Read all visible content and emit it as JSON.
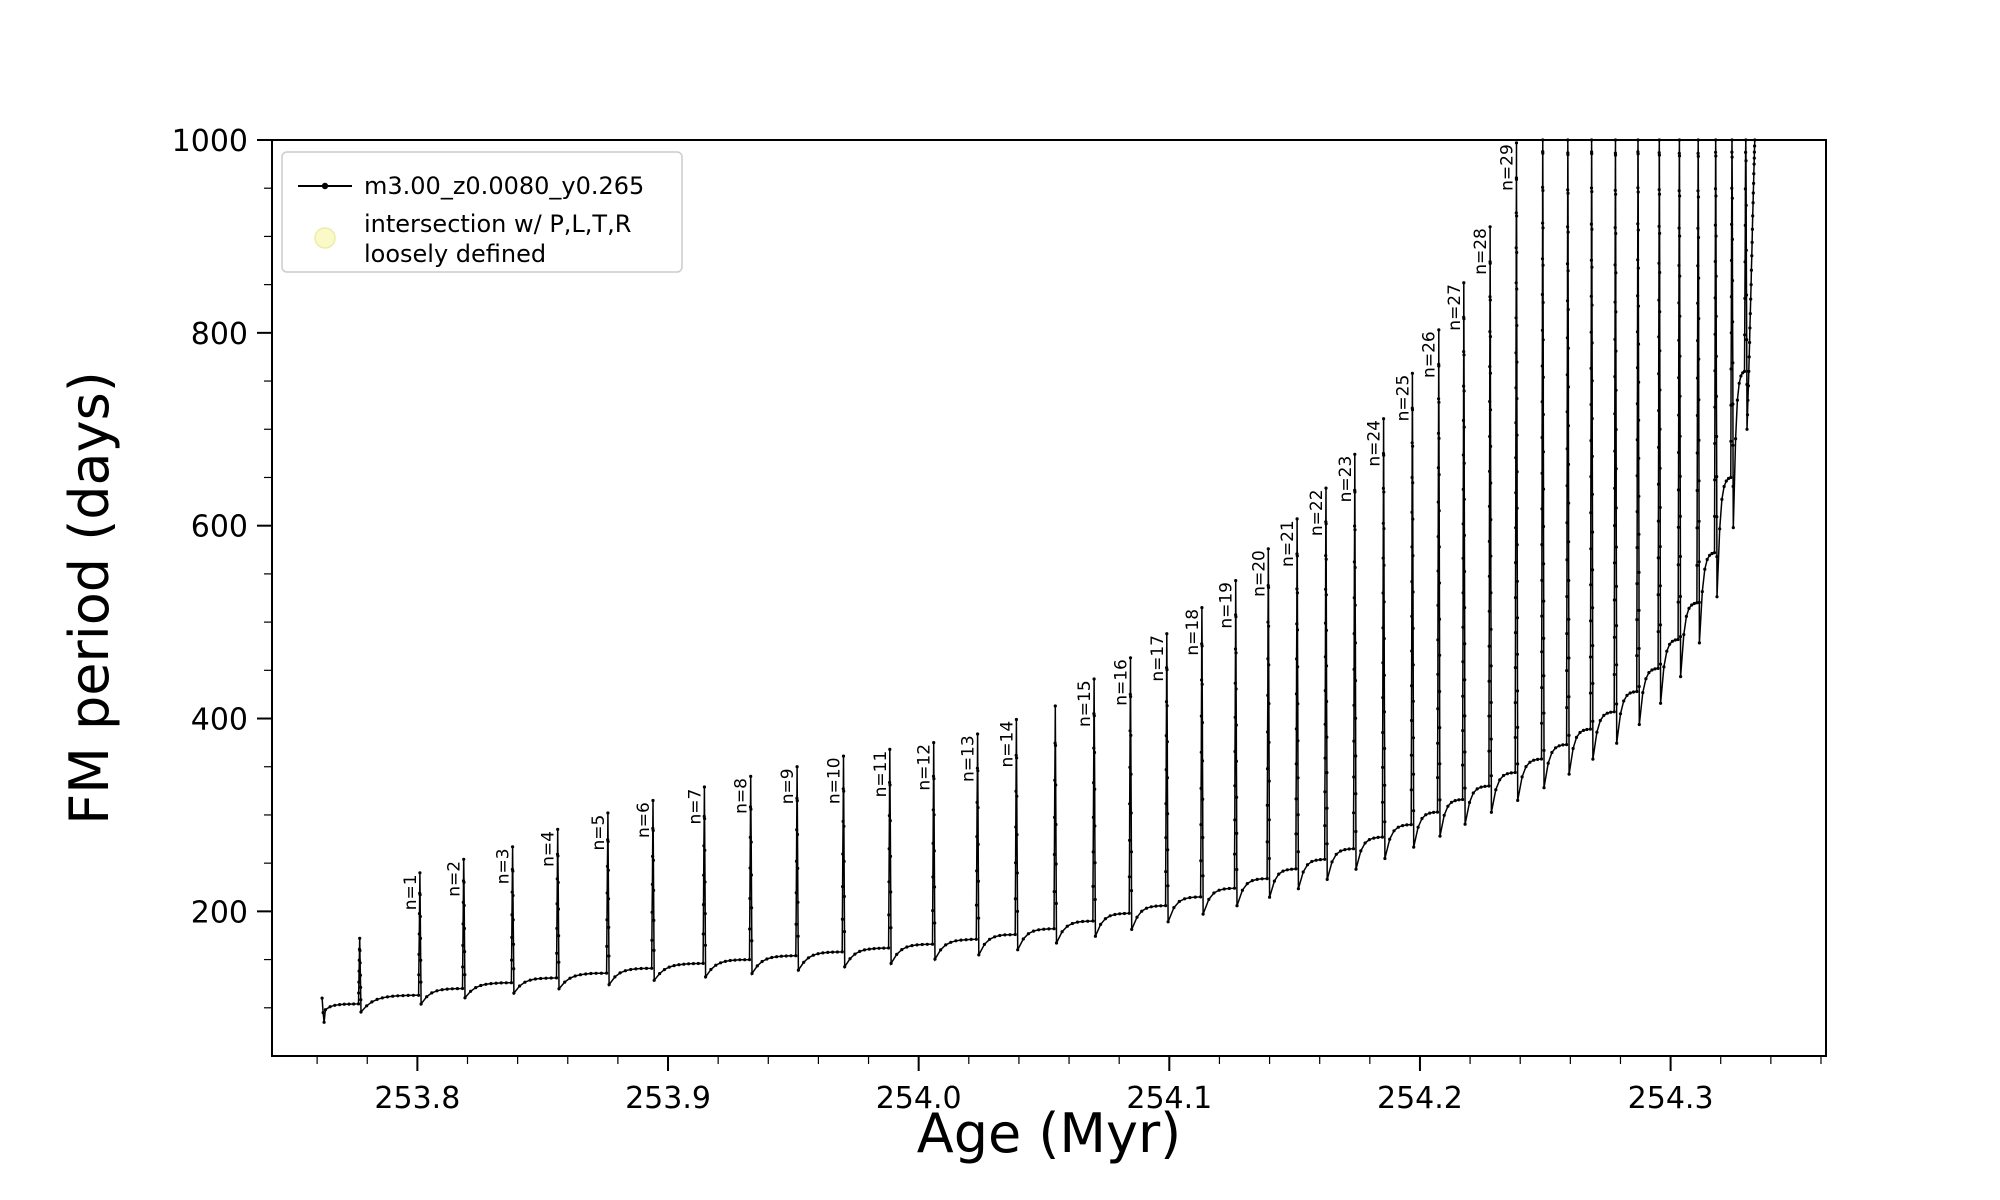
{
  "figure": {
    "background": "#ffffff"
  },
  "legend": {
    "entries": [
      {
        "label": "m3.00_z0.0080_y0.265",
        "marker": "line-dot",
        "color": "#000000"
      },
      {
        "label": "intersection w/ P,L,T,R loosely defined",
        "lines": [
          "intersection w/ P,L,T,R",
          "loosely defined"
        ],
        "marker": "circle",
        "color": "#fafac8"
      }
    ]
  },
  "chart_data": {
    "type": "line",
    "title": "",
    "xlabel": "Age (Myr)",
    "ylabel": "FM period (days)",
    "series_label": "m3.00_z0.0080_y0.265",
    "line_color": "#000000",
    "grid": false,
    "legend_position": "upper-left",
    "xlim": [
      253.742,
      254.362
    ],
    "ylim": [
      50,
      1000
    ],
    "xticks": [
      {
        "value": 253.8,
        "label": "253.8"
      },
      {
        "value": 253.9,
        "label": "253.9"
      },
      {
        "value": 254.0,
        "label": "254.0"
      },
      {
        "value": 254.1,
        "label": "254.1"
      },
      {
        "value": 254.2,
        "label": "254.2"
      },
      {
        "value": 254.3,
        "label": "254.3"
      }
    ],
    "yticks": [
      {
        "value": 200,
        "label": "200"
      },
      {
        "value": 400,
        "label": "400"
      },
      {
        "value": 600,
        "label": "600"
      },
      {
        "value": 800,
        "label": "800"
      },
      {
        "value": 1000,
        "label": "1000"
      }
    ],
    "x_minor_start": 253.76,
    "x_minor_step": 0.02,
    "y_minor_start": 100,
    "y_minor_step": 50,
    "start_points": [
      [
        253.762,
        110
      ],
      [
        253.7624,
        95
      ],
      [
        253.7628,
        85
      ],
      [
        253.7633,
        98
      ]
    ],
    "spikes": [
      {
        "n": "",
        "age": 253.777,
        "peak": 172,
        "plateau": 104
      },
      {
        "n": "n=1",
        "age": 253.801,
        "peak": 240,
        "plateau": 113
      },
      {
        "n": "n=2",
        "age": 253.8185,
        "peak": 254,
        "plateau": 120
      },
      {
        "n": "n=3",
        "age": 253.838,
        "peak": 267,
        "plateau": 126
      },
      {
        "n": "n=4",
        "age": 253.856,
        "peak": 285,
        "plateau": 131
      },
      {
        "n": "n=5",
        "age": 253.876,
        "peak": 302,
        "plateau": 136
      },
      {
        "n": "n=6",
        "age": 253.894,
        "peak": 315,
        "plateau": 141
      },
      {
        "n": "n=7",
        "age": 253.9145,
        "peak": 329,
        "plateau": 146
      },
      {
        "n": "n=8",
        "age": 253.933,
        "peak": 340,
        "plateau": 150
      },
      {
        "n": "n=9",
        "age": 253.9515,
        "peak": 350,
        "plateau": 154
      },
      {
        "n": "n=10",
        "age": 253.97,
        "peak": 361,
        "plateau": 158
      },
      {
        "n": "n=11",
        "age": 253.9885,
        "peak": 368,
        "plateau": 162
      },
      {
        "n": "n=12",
        "age": 254.006,
        "peak": 375,
        "plateau": 166
      },
      {
        "n": "n=13",
        "age": 254.0235,
        "peak": 384,
        "plateau": 171
      },
      {
        "n": "n=14",
        "age": 254.039,
        "peak": 399,
        "plateau": 176
      },
      {
        "n": "",
        "age": 254.0545,
        "peak": 413,
        "plateau": 182
      },
      {
        "n": "n=15",
        "age": 254.07,
        "peak": 441,
        "plateau": 190
      },
      {
        "n": "n=16",
        "age": 254.0845,
        "peak": 463,
        "plateau": 198
      },
      {
        "n": "n=17",
        "age": 254.099,
        "peak": 488,
        "plateau": 206
      },
      {
        "n": "n=18",
        "age": 254.113,
        "peak": 515,
        "plateau": 215
      },
      {
        "n": "n=19",
        "age": 254.1265,
        "peak": 543,
        "plateau": 224
      },
      {
        "n": "n=20",
        "age": 254.1395,
        "peak": 576,
        "plateau": 234
      },
      {
        "n": "n=21",
        "age": 254.151,
        "peak": 607,
        "plateau": 244
      },
      {
        "n": "n=22",
        "age": 254.1625,
        "peak": 639,
        "plateau": 254
      },
      {
        "n": "n=23",
        "age": 254.174,
        "peak": 674,
        "plateau": 265
      },
      {
        "n": "n=24",
        "age": 254.1855,
        "peak": 711,
        "plateau": 277
      },
      {
        "n": "n=25",
        "age": 254.197,
        "peak": 758,
        "plateau": 290
      },
      {
        "n": "n=26",
        "age": 254.2075,
        "peak": 803,
        "plateau": 303
      },
      {
        "n": "n=27",
        "age": 254.2175,
        "peak": 852,
        "plateau": 316
      },
      {
        "n": "n=28",
        "age": 254.228,
        "peak": 910,
        "plateau": 330
      },
      {
        "n": "n=29",
        "age": 254.2385,
        "peak": 997,
        "plateau": 344
      },
      {
        "n": "",
        "age": 254.249,
        "peak": 1025,
        "plateau": 358
      },
      {
        "n": "",
        "age": 254.259,
        "peak": 1025,
        "plateau": 373
      },
      {
        "n": "",
        "age": 254.2685,
        "peak": 1025,
        "plateau": 389
      },
      {
        "n": "",
        "age": 254.278,
        "peak": 1025,
        "plateau": 407
      },
      {
        "n": "",
        "age": 254.287,
        "peak": 1025,
        "plateau": 428
      },
      {
        "n": "",
        "age": 254.2955,
        "peak": 1025,
        "plateau": 452
      },
      {
        "n": "",
        "age": 254.3035,
        "peak": 1025,
        "plateau": 482
      },
      {
        "n": "",
        "age": 254.311,
        "peak": 1025,
        "plateau": 520
      },
      {
        "n": "",
        "age": 254.318,
        "peak": 1025,
        "plateau": 572
      },
      {
        "n": "",
        "age": 254.3245,
        "peak": 1025,
        "plateau": 650
      },
      {
        "n": "",
        "age": 254.33,
        "peak": 1025,
        "plateau": 760
      }
    ],
    "final_rise": [
      [
        254.3305,
        700
      ],
      [
        254.3312,
        760
      ],
      [
        254.3318,
        820
      ],
      [
        254.3324,
        880
      ],
      [
        254.3329,
        935
      ],
      [
        254.3333,
        975
      ],
      [
        254.3336,
        1000
      ]
    ]
  }
}
